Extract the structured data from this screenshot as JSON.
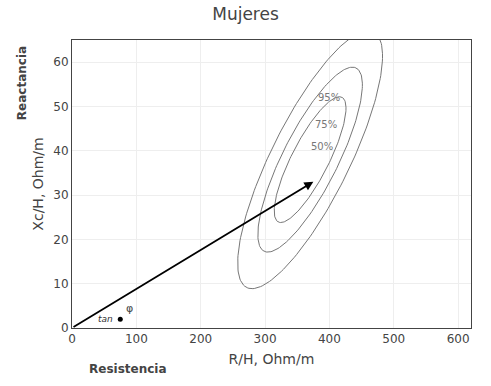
{
  "chart_data": {
    "type": "scatter",
    "title": "Mujeres",
    "x_label": "R/H, Ohm/m",
    "y_label": "Xc/H, Ohm/m",
    "xlim": [
      0,
      620
    ],
    "ylim": [
      0,
      65
    ],
    "xticks": [
      0,
      100,
      200,
      300,
      400,
      500,
      600
    ],
    "yticks": [
      0,
      10,
      20,
      30,
      40,
      50,
      60
    ],
    "grid": true,
    "ellipses": [
      {
        "cx": 370,
        "cy": 38,
        "rx": 115,
        "ry": 17,
        "angle": 12,
        "label": "95%",
        "label_x": 400,
        "label_y": 52
      },
      {
        "cx": 370,
        "cy": 38,
        "rx": 83,
        "ry": 12,
        "angle": 12,
        "label": "75%",
        "label_x": 395,
        "label_y": 46
      },
      {
        "cx": 370,
        "cy": 38,
        "rx": 57,
        "ry": 8,
        "angle": 12,
        "label": "50%",
        "label_x": 388,
        "label_y": 41
      }
    ],
    "ellipse_color": "#777777",
    "arrow": {
      "start": [
        0,
        0
      ],
      "end": [
        375,
        33
      ],
      "color": "#000000"
    },
    "point": {
      "x": 75,
      "y": 2,
      "color": "#000000"
    },
    "annotations": [
      {
        "text": "φ",
        "x": 75,
        "y": 2
      },
      {
        "text": "tan",
        "x": 75,
        "y": 2
      },
      {
        "text": "Resistencia",
        "axis": "x"
      },
      {
        "text": "Reactancia",
        "axis": "y"
      }
    ]
  }
}
